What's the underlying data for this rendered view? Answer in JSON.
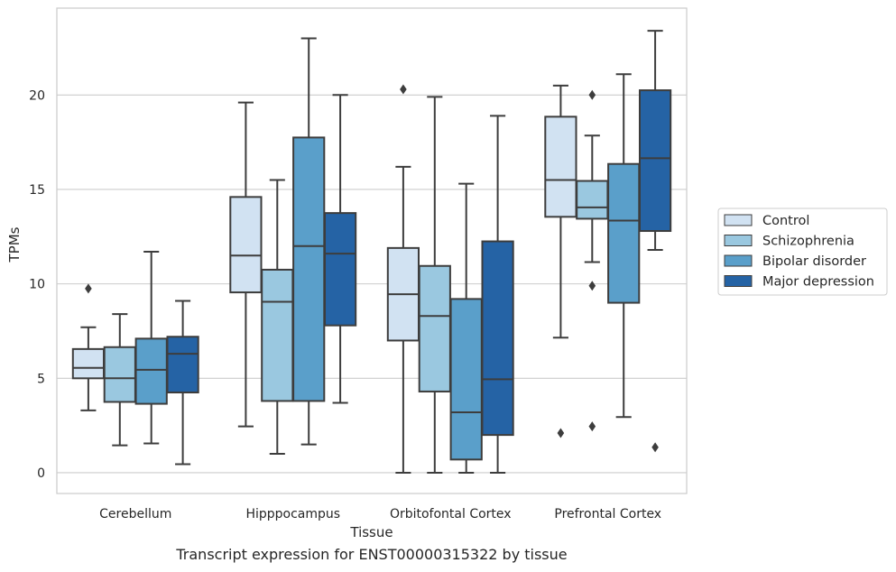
{
  "caption": "Transcript expression for ENST00000315322 by tissue",
  "chart_data": {
    "type": "box",
    "title": "",
    "xlabel": "Tissue",
    "ylabel": "TPMs",
    "ylim": [
      -1.1,
      24.6
    ],
    "yticks": [
      0,
      5,
      10,
      15,
      20
    ],
    "grid": "horizontal",
    "legend_position": "right",
    "categories": [
      "Cerebellum",
      "Hipppocampus",
      "Orbitofontal Cortex",
      "Prefrontal Cortex"
    ],
    "series": [
      {
        "name": "Control",
        "color": "#d1e2f2",
        "boxes": [
          {
            "whislo": 3.3,
            "q1": 5.0,
            "med": 5.55,
            "q3": 6.55,
            "whishi": 7.7,
            "fliers": [
              9.75
            ]
          },
          {
            "whislo": 2.45,
            "q1": 9.55,
            "med": 11.5,
            "q3": 14.6,
            "whishi": 19.6,
            "fliers": []
          },
          {
            "whislo": 0.0,
            "q1": 7.0,
            "med": 9.45,
            "q3": 11.9,
            "whishi": 16.2,
            "fliers": [
              20.3
            ]
          },
          {
            "whislo": 7.15,
            "q1": 13.55,
            "med": 15.5,
            "q3": 18.85,
            "whishi": 20.5,
            "fliers": [
              2.1
            ]
          }
        ]
      },
      {
        "name": "Schizophrenia",
        "color": "#9ac8e0",
        "boxes": [
          {
            "whislo": 1.45,
            "q1": 3.75,
            "med": 5.0,
            "q3": 6.65,
            "whishi": 8.4,
            "fliers": []
          },
          {
            "whislo": 1.0,
            "q1": 3.8,
            "med": 9.05,
            "q3": 10.75,
            "whishi": 15.5,
            "fliers": []
          },
          {
            "whislo": 0.0,
            "q1": 4.3,
            "med": 8.3,
            "q3": 10.95,
            "whishi": 19.9,
            "fliers": []
          },
          {
            "whislo": 11.15,
            "q1": 13.45,
            "med": 14.05,
            "q3": 15.45,
            "whishi": 17.85,
            "fliers": [
              20.0,
              9.9,
              2.45
            ]
          }
        ]
      },
      {
        "name": "Bipolar disorder",
        "color": "#5a9fca",
        "boxes": [
          {
            "whislo": 1.55,
            "q1": 3.65,
            "med": 5.45,
            "q3": 7.1,
            "whishi": 11.7,
            "fliers": []
          },
          {
            "whislo": 1.5,
            "q1": 3.8,
            "med": 12.0,
            "q3": 17.75,
            "whishi": 23.0,
            "fliers": []
          },
          {
            "whislo": 0.0,
            "q1": 0.7,
            "med": 3.2,
            "q3": 9.2,
            "whishi": 15.3,
            "fliers": []
          },
          {
            "whislo": 2.95,
            "q1": 9.0,
            "med": 13.35,
            "q3": 16.35,
            "whishi": 21.1,
            "fliers": []
          }
        ]
      },
      {
        "name": "Major depression",
        "color": "#2563a5",
        "boxes": [
          {
            "whislo": 0.45,
            "q1": 4.25,
            "med": 6.3,
            "q3": 7.2,
            "whishi": 9.1,
            "fliers": []
          },
          {
            "whislo": 3.7,
            "q1": 7.8,
            "med": 11.6,
            "q3": 13.75,
            "whishi": 20.0,
            "fliers": []
          },
          {
            "whislo": 0.0,
            "q1": 2.0,
            "med": 4.95,
            "q3": 12.25,
            "whishi": 18.9,
            "fliers": []
          },
          {
            "whislo": 11.8,
            "q1": 12.8,
            "med": 16.65,
            "q3": 20.25,
            "whishi": 23.4,
            "fliers": [
              1.35
            ]
          }
        ]
      }
    ]
  }
}
